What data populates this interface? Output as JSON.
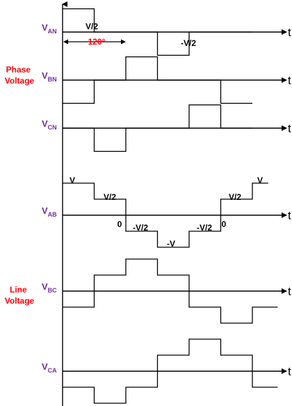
{
  "groups": {
    "phase": [
      "Phase",
      "Voltage"
    ],
    "line": [
      "Line",
      "Voltage"
    ]
  },
  "time_label": "t",
  "angle_label": "120°",
  "signals": [
    {
      "id": "van",
      "main": "V",
      "sub": "AN",
      "values": [
        0.5,
        0,
        0,
        -0.5,
        0,
        0
      ],
      "labels": [
        "V/2",
        "",
        "",
        "-V/2",
        "",
        ""
      ]
    },
    {
      "id": "vbn",
      "main": "V",
      "sub": "BN",
      "values": [
        -0.5,
        0,
        0.5,
        0,
        0,
        -0.5
      ],
      "labels": []
    },
    {
      "id": "vcn",
      "main": "V",
      "sub": "CN",
      "values": [
        0,
        -0.5,
        0,
        0,
        0.5,
        0
      ],
      "labels": []
    },
    {
      "id": "vab",
      "main": "V",
      "sub": "AB",
      "values": [
        1,
        0.5,
        0,
        -0.5,
        -1,
        -0.5,
        0,
        0.5,
        1
      ],
      "labels": [
        "V",
        "V/2",
        "0",
        "-V/2",
        "-V",
        "-V/2",
        "0",
        "V/2",
        "V"
      ]
    },
    {
      "id": "vbc",
      "main": "V",
      "sub": "BC",
      "values": [
        -0.5,
        0.5,
        1,
        0.5,
        -0.5,
        -1,
        -0.5
      ],
      "labels": []
    },
    {
      "id": "vca",
      "main": "V",
      "sub": "CA",
      "values": [
        -0.5,
        -1,
        -0.5,
        0.5,
        1,
        0.5,
        -0.5
      ],
      "labels": []
    }
  ],
  "colors": {
    "signal_label": "#7030a0",
    "group_label": "#ff0000",
    "waveform": "#000000"
  }
}
